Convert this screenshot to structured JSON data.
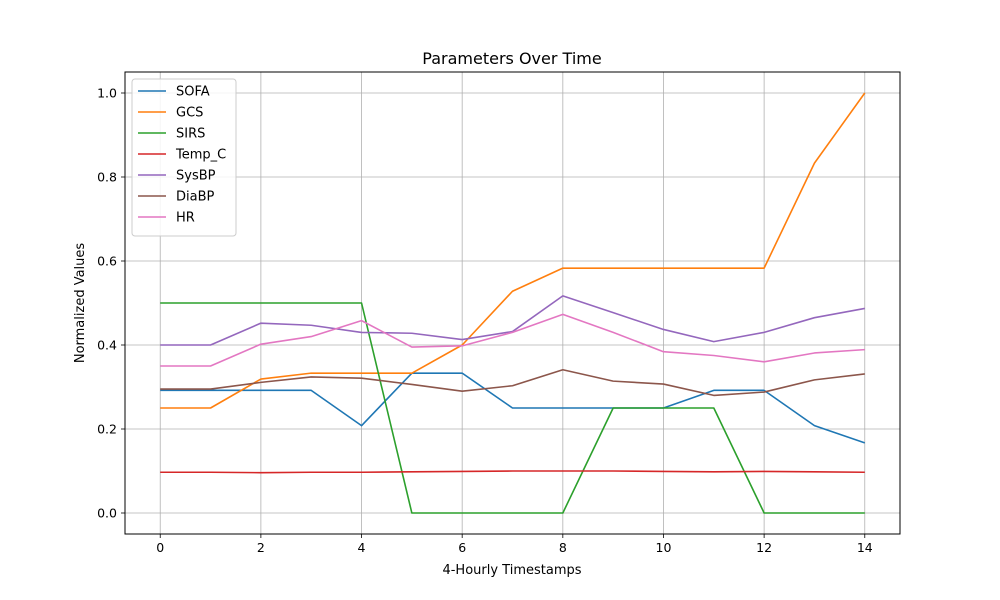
{
  "chart_data": {
    "type": "line",
    "title": "Parameters Over Time",
    "xlabel": "4-Hourly Timestamps",
    "ylabel": "Normalized Values",
    "xlim": [
      -0.7,
      14.7
    ],
    "ylim": [
      -0.05,
      1.05
    ],
    "x_ticks": [
      0,
      2,
      4,
      6,
      8,
      10,
      12,
      14
    ],
    "y_ticks": [
      0.0,
      0.2,
      0.4,
      0.6,
      0.8,
      1.0
    ],
    "y_tick_labels": [
      "0.0",
      "0.2",
      "0.4",
      "0.6",
      "0.8",
      "1.0"
    ],
    "grid": true,
    "legend_position": "top-left",
    "x": [
      0,
      1,
      2,
      3,
      4,
      5,
      6,
      7,
      8,
      9,
      10,
      11,
      12,
      13,
      14
    ],
    "series": [
      {
        "name": "SOFA",
        "color": "#1f77b4",
        "values": [
          0.292,
          0.292,
          0.292,
          0.292,
          0.208,
          0.333,
          0.333,
          0.25,
          0.25,
          0.25,
          0.25,
          0.292,
          0.292,
          0.208,
          0.167
        ]
      },
      {
        "name": "GCS",
        "color": "#ff7f0e",
        "values": [
          0.25,
          0.25,
          0.319,
          0.333,
          0.333,
          0.333,
          0.4,
          0.528,
          0.583,
          0.583,
          0.583,
          0.583,
          0.583,
          0.833,
          1.0
        ]
      },
      {
        "name": "SIRS",
        "color": "#2ca02c",
        "values": [
          0.5,
          0.5,
          0.5,
          0.5,
          0.5,
          0.0,
          0.0,
          0.0,
          0.0,
          0.25,
          0.25,
          0.25,
          0.0,
          0.0,
          0.0
        ]
      },
      {
        "name": "Temp_C",
        "color": "#d62728",
        "values": [
          0.097,
          0.097,
          0.096,
          0.097,
          0.097,
          0.098,
          0.099,
          0.1,
          0.1,
          0.1,
          0.099,
          0.098,
          0.099,
          0.098,
          0.097
        ]
      },
      {
        "name": "SysBP",
        "color": "#9467bd",
        "values": [
          0.4,
          0.4,
          0.452,
          0.447,
          0.43,
          0.428,
          0.413,
          0.432,
          0.517,
          0.477,
          0.437,
          0.408,
          0.43,
          0.465,
          0.487
        ]
      },
      {
        "name": "DiaBP",
        "color": "#8c564b",
        "values": [
          0.295,
          0.295,
          0.311,
          0.324,
          0.321,
          0.306,
          0.29,
          0.303,
          0.341,
          0.314,
          0.307,
          0.28,
          0.288,
          0.317,
          0.331
        ]
      },
      {
        "name": "HR",
        "color": "#e377c2",
        "values": [
          0.35,
          0.35,
          0.402,
          0.42,
          0.458,
          0.395,
          0.398,
          0.43,
          0.473,
          0.43,
          0.384,
          0.375,
          0.36,
          0.381,
          0.389
        ]
      }
    ]
  }
}
